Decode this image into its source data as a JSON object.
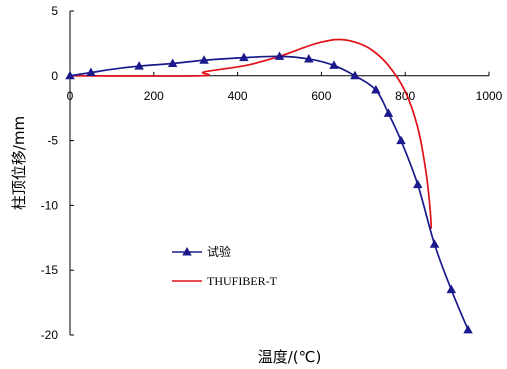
{
  "chart_data": {
    "type": "line",
    "xlabel": "温度/(℃)",
    "ylabel": "柱顶位移/mm",
    "xlim": [
      0,
      1000
    ],
    "ylim": [
      -20,
      5
    ],
    "x_ticks": [
      "0",
      "200",
      "400",
      "600",
      "800",
      "1000"
    ],
    "y_ticks": [
      "5",
      "0",
      "-5",
      "-10",
      "-15",
      "-20"
    ],
    "grid": false,
    "legend_position": "lower-left",
    "series": [
      {
        "name": "试验",
        "color": "#1a1a8c",
        "marker": "triangle",
        "x": [
          0,
          50,
          100,
          165,
          245,
          320,
          415,
          500,
          570,
          630,
          680,
          730,
          760,
          790,
          830,
          870,
          910,
          950
        ],
        "y": [
          0,
          0.25,
          0.5,
          0.75,
          0.95,
          1.2,
          1.4,
          1.5,
          1.3,
          0.8,
          0,
          -1.1,
          -2.9,
          -5.0,
          -8.4,
          -13.0,
          -16.5,
          -19.6
        ],
        "markers_at": [
          0,
          50,
          165,
          245,
          320,
          415,
          500,
          570,
          630,
          680,
          730,
          760,
          790,
          830,
          870,
          910,
          950
        ]
      },
      {
        "name": "THUFIBER-T",
        "color": "#e0101a",
        "marker": "none",
        "x": [
          0,
          310,
          320,
          420,
          500,
          560,
          600,
          640,
          680,
          720,
          760,
          800,
          830,
          850,
          860,
          862
        ],
        "y": [
          0,
          0,
          0.3,
          0.8,
          1.5,
          2.2,
          2.6,
          2.8,
          2.6,
          2.0,
          0.8,
          -1.2,
          -4.0,
          -7.5,
          -10.5,
          -11.8
        ]
      }
    ]
  },
  "legend": {
    "items": [
      {
        "label": "试验",
        "color": "#1a1a8c",
        "marker": "triangle"
      },
      {
        "label": "THUFIBER-T",
        "color": "#e0101a",
        "marker": "none"
      }
    ]
  }
}
